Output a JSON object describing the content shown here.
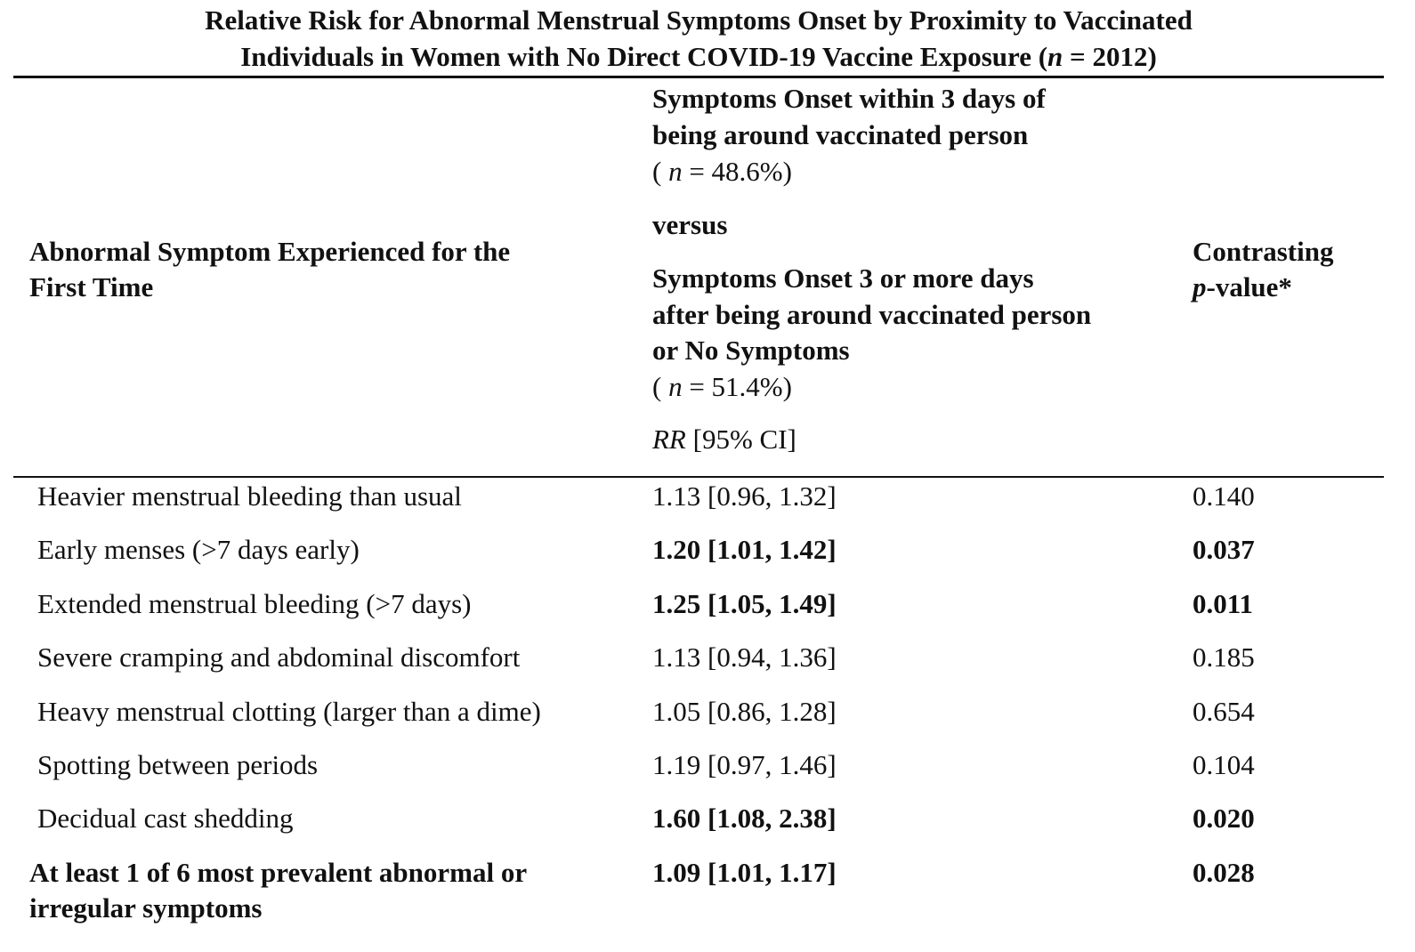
{
  "title": {
    "line1": "Relative Risk for Abnormal Menstrual Symptoms Onset by Proximity to Vaccinated",
    "line2_prefix": "Individuals in Women with No Direct COVID-19 Vaccine Exposure (",
    "line2_n": "n",
    "line2_suffix": " = 2012)"
  },
  "header": {
    "col1": [
      "Abnormal Symptom Experienced for the",
      "First Time"
    ],
    "col2_group1": [
      "Symptoms Onset within 3 days of",
      "being around vaccinated person"
    ],
    "col2_group1_n": "( n = 48.6%)",
    "col2_versus": "versus",
    "col2_group2": [
      "Symptoms Onset 3 or more days",
      "after being around vaccinated person",
      "or No Symptoms"
    ],
    "col2_group2_n": "( n = 51.4%)",
    "col2_measure": "RR [95% CI]",
    "col3": [
      "Contrasting",
      "p-value*"
    ]
  },
  "rows": [
    {
      "symptom": "Heavier menstrual bleeding than usual",
      "rr": "1.13 [0.96, 1.32]",
      "p": "0.140",
      "bold": false
    },
    {
      "symptom": "Early menses (>7 days early)",
      "rr": "1.20 [1.01, 1.42]",
      "p": "0.037",
      "bold": true
    },
    {
      "symptom": "Extended menstrual bleeding (>7 days)",
      "rr": "1.25 [1.05, 1.49]",
      "p": "0.011",
      "bold": true
    },
    {
      "symptom": "Severe cramping and abdominal discomfort",
      "rr": "1.13 [0.94, 1.36]",
      "p": "0.185",
      "bold": false
    },
    {
      "symptom": "Heavy menstrual clotting (larger than a dime)",
      "rr": "1.05 [0.86, 1.28]",
      "p": "0.654",
      "bold": false
    },
    {
      "symptom": "Spotting between periods",
      "rr": "1.19 [0.97, 1.46]",
      "p": "0.104",
      "bold": false
    },
    {
      "symptom": "Decidual cast shedding",
      "rr": "1.60 [1.08, 2.38]",
      "p": "0.020",
      "bold": true
    }
  ],
  "summary_row": {
    "symptom": [
      "At least 1 of 6 most prevalent abnormal or",
      "irregular symptoms"
    ],
    "rr": "1.09 [1.01, 1.17]",
    "p": "0.028"
  }
}
